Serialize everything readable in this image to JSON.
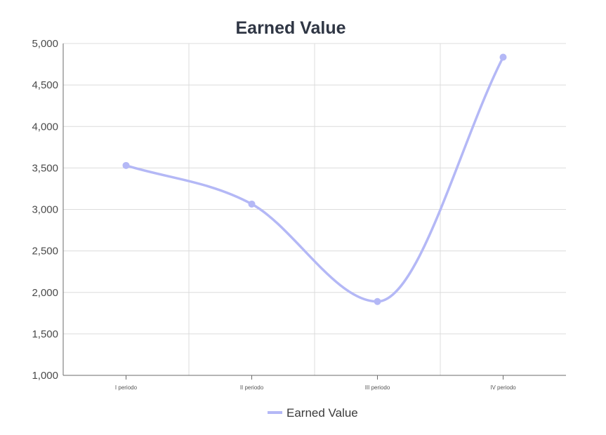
{
  "chart_data": {
    "type": "line",
    "title": "Earned Value",
    "categories": [
      "I periodo",
      "II periodo",
      "III periodo",
      "IV periodo"
    ],
    "series": [
      {
        "name": "Earned Value",
        "values": [
          3530,
          3065,
          1890,
          4835
        ],
        "color": "#b4b8f6"
      }
    ],
    "ylim": [
      1000,
      5000
    ],
    "yticks": [
      1000,
      1500,
      2000,
      2500,
      3000,
      3500,
      4000,
      4500,
      5000
    ],
    "ytick_labels": [
      "1,000",
      "1,500",
      "2,000",
      "2,500",
      "3,000",
      "3,500",
      "4,000",
      "4,500",
      "5,000"
    ],
    "grid": true,
    "smooth": true,
    "legend_position": "bottom-center",
    "colors": {
      "title": "#2f3644",
      "grid": "#dcdcdc",
      "axis": "#6b6b6b"
    }
  }
}
